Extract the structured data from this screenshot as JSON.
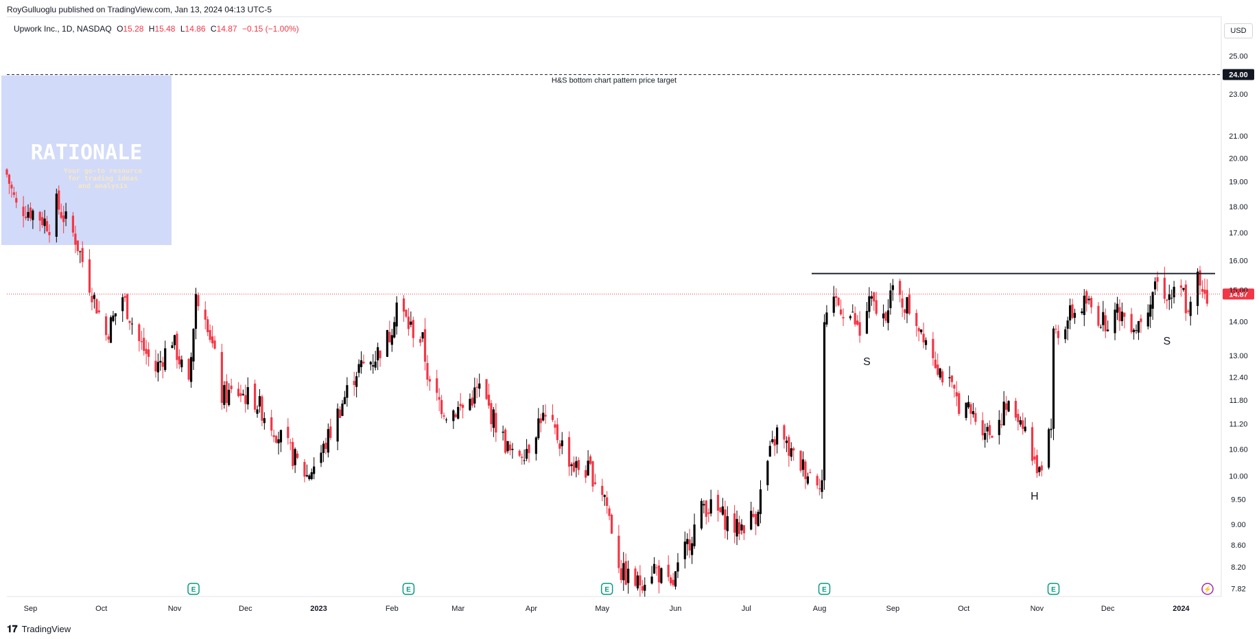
{
  "publisher_line": "RoyGulluoglu published on TradingView.com, Jan 13, 2024 04:13 UTC-5",
  "legend": {
    "symbol": "Upwork Inc., 1D, NASDAQ",
    "open_label": "O",
    "open": "15.28",
    "high_label": "H",
    "high": "15.48",
    "low_label": "L",
    "low": "14.86",
    "close_label": "C",
    "close": "14.87",
    "change": "−0.15 (−1.00%)"
  },
  "currency_button": "USD",
  "footer_brand": "TradingView",
  "watermark": {
    "title": "RATIONALE",
    "tagline": "Your go-to resource for trading ideas and analysis"
  },
  "colors": {
    "up": "#000000",
    "down": "#f23645",
    "target_line": "#131722",
    "neckline": "#131722",
    "last_price_bg": "#f23645",
    "target_bg": "#131722",
    "watermark_bg": "#c9d3f7",
    "earnings_icon": "#089981"
  },
  "chart_data": {
    "type": "candlestick",
    "title": "Upwork Inc., 1D, NASDAQ",
    "scale": "log",
    "ylim": [
      7.7,
      27.0
    ],
    "y_ticks": [
      "25.00",
      "23.00",
      "21.00",
      "20.00",
      "19.00",
      "18.00",
      "17.00",
      "16.00",
      "15.00",
      "14.00",
      "13.00",
      "12.40",
      "11.80",
      "11.20",
      "10.60",
      "10.00",
      "9.50",
      "9.00",
      "8.60",
      "8.20",
      "7.82"
    ],
    "x_start": "2022-08-22",
    "x_end": "2024-01-18",
    "x_ticks": [
      {
        "date": "2022-09-01",
        "label": "Sep"
      },
      {
        "date": "2022-10-01",
        "label": "Oct"
      },
      {
        "date": "2022-11-01",
        "label": "Nov"
      },
      {
        "date": "2022-12-01",
        "label": "Dec"
      },
      {
        "date": "2023-01-01",
        "label": "2023"
      },
      {
        "date": "2023-02-01",
        "label": "Feb"
      },
      {
        "date": "2023-03-01",
        "label": "Mar"
      },
      {
        "date": "2023-04-01",
        "label": "Apr"
      },
      {
        "date": "2023-05-01",
        "label": "May"
      },
      {
        "date": "2023-06-01",
        "label": "Jun"
      },
      {
        "date": "2023-07-01",
        "label": "Jul"
      },
      {
        "date": "2023-08-01",
        "label": "Aug"
      },
      {
        "date": "2023-09-01",
        "label": "Sep"
      },
      {
        "date": "2023-10-01",
        "label": "Oct"
      },
      {
        "date": "2023-11-01",
        "label": "Nov"
      },
      {
        "date": "2023-12-01",
        "label": "Dec"
      },
      {
        "date": "2024-01-01",
        "label": "2024"
      }
    ],
    "close_path": [
      {
        "date": "2022-08-22",
        "close": 19.3
      },
      {
        "date": "2022-08-26",
        "close": 18.0
      },
      {
        "date": "2022-09-02",
        "close": 17.8
      },
      {
        "date": "2022-09-09",
        "close": 17.3
      },
      {
        "date": "2022-09-12",
        "close": 18.1
      },
      {
        "date": "2022-09-20",
        "close": 16.8
      },
      {
        "date": "2022-09-26",
        "close": 15.2
      },
      {
        "date": "2022-10-03",
        "close": 13.6
      },
      {
        "date": "2022-10-10",
        "close": 14.8
      },
      {
        "date": "2022-10-17",
        "close": 13.4
      },
      {
        "date": "2022-10-24",
        "close": 12.6
      },
      {
        "date": "2022-10-31",
        "close": 13.5
      },
      {
        "date": "2022-11-07",
        "close": 12.1
      },
      {
        "date": "2022-11-10",
        "close": 14.9
      },
      {
        "date": "2022-11-14",
        "close": 14.4
      },
      {
        "date": "2022-11-21",
        "close": 11.9
      },
      {
        "date": "2022-11-28",
        "close": 12.0
      },
      {
        "date": "2022-12-05",
        "close": 11.8
      },
      {
        "date": "2022-12-12",
        "close": 11.2
      },
      {
        "date": "2022-12-19",
        "close": 10.6
      },
      {
        "date": "2022-12-27",
        "close": 10.0
      },
      {
        "date": "2023-01-03",
        "close": 10.6
      },
      {
        "date": "2023-01-10",
        "close": 11.6
      },
      {
        "date": "2023-01-17",
        "close": 12.6
      },
      {
        "date": "2023-01-24",
        "close": 12.9
      },
      {
        "date": "2023-01-31",
        "close": 13.6
      },
      {
        "date": "2023-02-03",
        "close": 14.6
      },
      {
        "date": "2023-02-08",
        "close": 13.9
      },
      {
        "date": "2023-02-14",
        "close": 13.4
      },
      {
        "date": "2023-02-17",
        "close": 12.1
      },
      {
        "date": "2023-02-24",
        "close": 11.5
      },
      {
        "date": "2023-03-03",
        "close": 11.6
      },
      {
        "date": "2023-03-10",
        "close": 12.1
      },
      {
        "date": "2023-03-17",
        "close": 11.2
      },
      {
        "date": "2023-03-24",
        "close": 10.4
      },
      {
        "date": "2023-03-31",
        "close": 10.7
      },
      {
        "date": "2023-04-05",
        "close": 11.4
      },
      {
        "date": "2023-04-12",
        "close": 10.9
      },
      {
        "date": "2023-04-19",
        "close": 10.2
      },
      {
        "date": "2023-04-26",
        "close": 10.1
      },
      {
        "date": "2023-05-02",
        "close": 9.6
      },
      {
        "date": "2023-05-09",
        "close": 8.1
      },
      {
        "date": "2023-05-16",
        "close": 7.9
      },
      {
        "date": "2023-05-23",
        "close": 8.2
      },
      {
        "date": "2023-05-30",
        "close": 7.8
      },
      {
        "date": "2023-06-06",
        "close": 8.6
      },
      {
        "date": "2023-06-13",
        "close": 9.4
      },
      {
        "date": "2023-06-20",
        "close": 9.2
      },
      {
        "date": "2023-06-27",
        "close": 8.9
      },
      {
        "date": "2023-07-05",
        "close": 9.2
      },
      {
        "date": "2023-07-10",
        "close": 10.3
      },
      {
        "date": "2023-07-14",
        "close": 11.0
      },
      {
        "date": "2023-07-21",
        "close": 10.4
      },
      {
        "date": "2023-07-27",
        "close": 10.1
      },
      {
        "date": "2023-08-02",
        "close": 9.9
      },
      {
        "date": "2023-08-03",
        "close": 13.8
      },
      {
        "date": "2023-08-08",
        "close": 14.6
      },
      {
        "date": "2023-08-15",
        "close": 14.1
      },
      {
        "date": "2023-08-18",
        "close": 13.6
      },
      {
        "date": "2023-08-22",
        "close": 14.6
      },
      {
        "date": "2023-08-28",
        "close": 14.1
      },
      {
        "date": "2023-08-31",
        "close": 14.9
      },
      {
        "date": "2023-09-07",
        "close": 14.5
      },
      {
        "date": "2023-09-14",
        "close": 13.7
      },
      {
        "date": "2023-09-21",
        "close": 12.6
      },
      {
        "date": "2023-09-28",
        "close": 11.8
      },
      {
        "date": "2023-10-05",
        "close": 11.4
      },
      {
        "date": "2023-10-12",
        "close": 11.0
      },
      {
        "date": "2023-10-19",
        "close": 11.6
      },
      {
        "date": "2023-10-26",
        "close": 11.3
      },
      {
        "date": "2023-10-31",
        "close": 10.2
      },
      {
        "date": "2023-11-03",
        "close": 10.3
      },
      {
        "date": "2023-11-07",
        "close": 11.3
      },
      {
        "date": "2023-11-08",
        "close": 13.6
      },
      {
        "date": "2023-11-15",
        "close": 14.2
      },
      {
        "date": "2023-11-22",
        "close": 14.6
      },
      {
        "date": "2023-11-29",
        "close": 14.0
      },
      {
        "date": "2023-12-06",
        "close": 14.3
      },
      {
        "date": "2023-12-13",
        "close": 13.9
      },
      {
        "date": "2023-12-18",
        "close": 14.6
      },
      {
        "date": "2023-12-21",
        "close": 15.3
      },
      {
        "date": "2023-12-27",
        "close": 14.8
      },
      {
        "date": "2024-01-02",
        "close": 14.9
      },
      {
        "date": "2024-01-04",
        "close": 14.1
      },
      {
        "date": "2024-01-08",
        "close": 15.4
      },
      {
        "date": "2024-01-12",
        "close": 14.87
      }
    ],
    "lines": [
      {
        "name": "target",
        "price": 24.0,
        "label": "H&S bottom chart pattern price target",
        "style": "dashed",
        "tag": "24.00"
      },
      {
        "name": "neckline",
        "price": 15.55,
        "from": "2023-08-02",
        "to": "2024-01-12",
        "style": "solid"
      },
      {
        "name": "last_price",
        "price": 14.87,
        "style": "dotted",
        "tag": "14.87"
      }
    ],
    "annotations": [
      {
        "text": "S",
        "date": "2023-08-21",
        "price": 13.0
      },
      {
        "text": "H",
        "date": "2023-10-31",
        "price": 9.7
      },
      {
        "text": "S",
        "date": "2023-12-26",
        "price": 13.6
      }
    ],
    "earnings_markers": [
      "2022-11-09",
      "2023-02-08",
      "2023-05-03",
      "2023-08-03",
      "2023-11-08"
    ],
    "earnings_label": "E"
  }
}
